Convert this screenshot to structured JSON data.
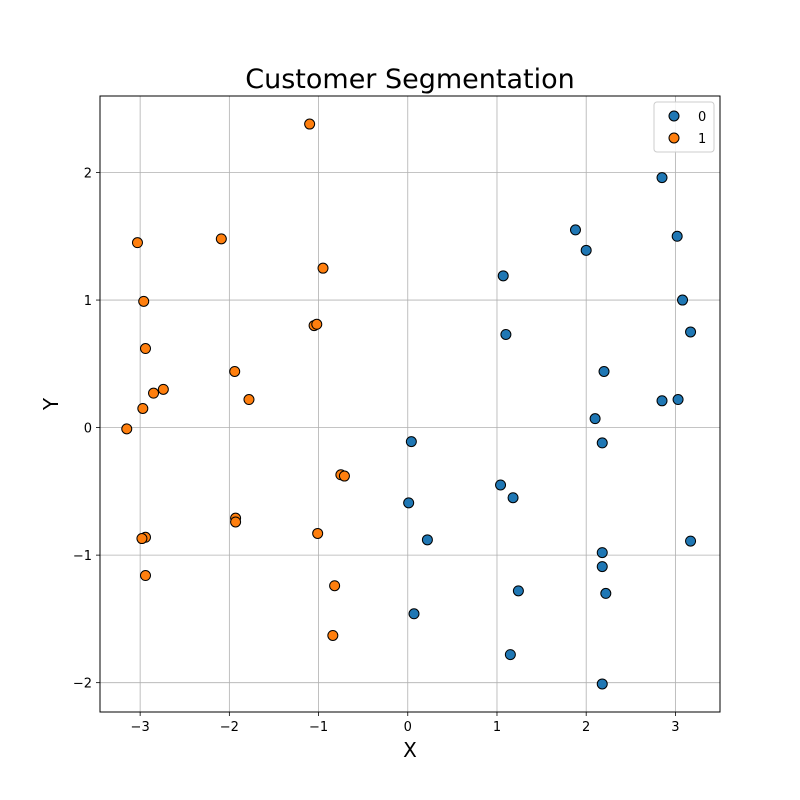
{
  "chart_data": {
    "type": "scatter",
    "title": "Customer Segmentation",
    "xlabel": "X",
    "ylabel": "Y",
    "xlim": [
      -3.45,
      3.5
    ],
    "ylim": [
      -2.23,
      2.6
    ],
    "xticks": [
      -3,
      -2,
      -1,
      0,
      1,
      2,
      3
    ],
    "yticks": [
      -2,
      -1,
      0,
      1,
      2
    ],
    "xtick_labels": [
      "−3",
      "−2",
      "−1",
      "0",
      "1",
      "2",
      "3"
    ],
    "ytick_labels": [
      "−2",
      "−1",
      "0",
      "1",
      "2"
    ],
    "grid": true,
    "legend_position": "top-right",
    "series": [
      {
        "name": "0",
        "color": "#1f77b4",
        "points": [
          [
            1.07,
            1.19
          ],
          [
            1.1,
            0.73
          ],
          [
            1.88,
            1.55
          ],
          [
            2.0,
            1.39
          ],
          [
            2.85,
            1.96
          ],
          [
            3.02,
            1.5
          ],
          [
            3.08,
            1.0
          ],
          [
            3.17,
            0.75
          ],
          [
            2.2,
            0.44
          ],
          [
            2.1,
            0.07
          ],
          [
            2.85,
            0.21
          ],
          [
            3.03,
            0.22
          ],
          [
            2.18,
            -0.12
          ],
          [
            0.04,
            -0.11
          ],
          [
            1.04,
            -0.45
          ],
          [
            1.18,
            -0.55
          ],
          [
            0.01,
            -0.59
          ],
          [
            0.22,
            -0.88
          ],
          [
            2.18,
            -0.98
          ],
          [
            3.17,
            -0.89
          ],
          [
            2.18,
            -1.09
          ],
          [
            2.22,
            -1.3
          ],
          [
            1.24,
            -1.28
          ],
          [
            0.07,
            -1.46
          ],
          [
            1.15,
            -1.78
          ],
          [
            2.18,
            -2.01
          ]
        ]
      },
      {
        "name": "1",
        "color": "#ff7f0e",
        "points": [
          [
            -1.1,
            2.38
          ],
          [
            -3.03,
            1.45
          ],
          [
            -2.09,
            1.48
          ],
          [
            -0.95,
            1.25
          ],
          [
            -2.96,
            0.99
          ],
          [
            -1.05,
            0.8
          ],
          [
            -1.02,
            0.81
          ],
          [
            -2.94,
            0.62
          ],
          [
            -1.94,
            0.44
          ],
          [
            -2.85,
            0.27
          ],
          [
            -2.74,
            0.3
          ],
          [
            -1.78,
            0.22
          ],
          [
            -2.97,
            0.15
          ],
          [
            -3.15,
            -0.01
          ],
          [
            -0.75,
            -0.37
          ],
          [
            -0.71,
            -0.38
          ],
          [
            -1.93,
            -0.71
          ],
          [
            -1.93,
            -0.74
          ],
          [
            -1.01,
            -0.83
          ],
          [
            -2.94,
            -0.86
          ],
          [
            -2.98,
            -0.87
          ],
          [
            -2.94,
            -1.16
          ],
          [
            -0.82,
            -1.24
          ],
          [
            -0.84,
            -1.63
          ]
        ]
      }
    ]
  }
}
